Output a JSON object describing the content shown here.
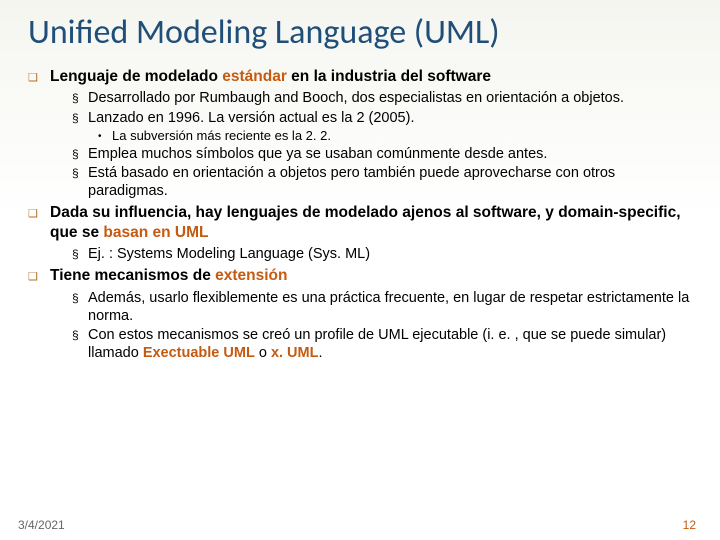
{
  "title": "Unified Modeling Language (UML)",
  "colors": {
    "title": "#1f4e79",
    "accent": "#c55a11",
    "bullet_q": "#b46b1e"
  },
  "points": [
    {
      "head_parts": [
        {
          "t": "Lenguaje de modelado ",
          "b": true
        },
        {
          "t": "estándar",
          "b": true,
          "em": true
        },
        {
          "t": " en la industria del software",
          "b": true
        }
      ],
      "sub": [
        {
          "parts": [
            {
              "t": "Desarrollado por Rumbaugh and Booch, dos especialistas en orientación a objetos."
            }
          ]
        },
        {
          "parts": [
            {
              "t": "Lanzado en 1996. La versión actual es la 2 (2005)."
            }
          ],
          "sub": [
            {
              "parts": [
                {
                  "t": "La subversión más reciente es la 2. 2."
                }
              ]
            }
          ]
        },
        {
          "parts": [
            {
              "t": "Emplea muchos símbolos que ya se usaban comúnmente desde antes."
            }
          ]
        },
        {
          "parts": [
            {
              "t": "Está basado en orientación a objetos pero también puede aprovecharse con otros paradigmas."
            }
          ]
        }
      ]
    },
    {
      "head_parts": [
        {
          "t": "Dada su influencia, hay lenguajes de modelado ajenos al software, y domain-specific, que se ",
          "b": true
        },
        {
          "t": "basan en UML",
          "b": true,
          "em": true
        }
      ],
      "sub": [
        {
          "parts": [
            {
              "t": "Ej. : Systems Modeling Language (Sys. ML)"
            }
          ]
        }
      ]
    },
    {
      "head_parts": [
        {
          "t": "Tiene mecanismos de ",
          "b": true
        },
        {
          "t": "extensión",
          "b": true,
          "em": true
        }
      ],
      "sub": [
        {
          "parts": [
            {
              "t": "Además, usarlo flexiblemente es una práctica frecuente, en lugar de respetar estrictamente la norma."
            }
          ]
        },
        {
          "parts": [
            {
              "t": "Con estos mecanismos se creó un profile de UML ejecutable (i. e. , que se puede simular) llamado "
            },
            {
              "t": "Exectuable UML",
              "b": true,
              "em": true
            },
            {
              "t": " o "
            },
            {
              "t": "x. UML",
              "b": true,
              "em": true
            },
            {
              "t": "."
            }
          ]
        }
      ]
    }
  ],
  "footer": {
    "date": "3/4/2021",
    "page": "12"
  }
}
